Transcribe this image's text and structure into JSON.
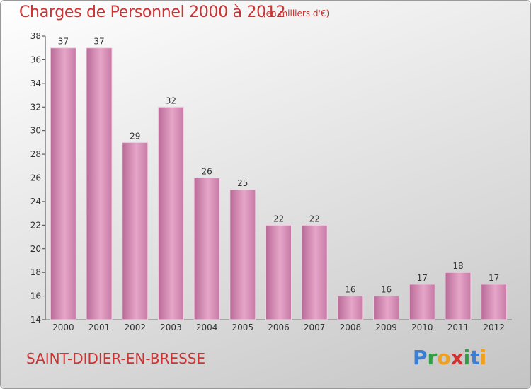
{
  "header": {
    "title": "Charges de Personnel 2000 à 2012",
    "unit": "(en milliers d'€)"
  },
  "footer": {
    "town": "SAINT-DIDIER-EN-BRESSE",
    "logo": {
      "letters": [
        "P",
        "r",
        "o",
        "x",
        "i",
        "t",
        "i"
      ],
      "colors": [
        "#3b7fd4",
        "#2f9e44",
        "#f0a020",
        "#d03030",
        "#2f9e44",
        "#3b7fd4",
        "#f0a020"
      ]
    }
  },
  "chart_data": {
    "type": "bar",
    "title": "Charges de Personnel 2000 à 2012",
    "subtitle": "(en milliers d'€)",
    "categories": [
      "2000",
      "2001",
      "2002",
      "2003",
      "2004",
      "2005",
      "2006",
      "2007",
      "2008",
      "2009",
      "2010",
      "2011",
      "2012"
    ],
    "values": [
      37,
      37,
      29,
      32,
      26,
      25,
      22,
      22,
      16,
      16,
      17,
      18,
      17
    ],
    "ylim": [
      14,
      38
    ],
    "yticks": [
      14,
      16,
      18,
      20,
      22,
      24,
      26,
      28,
      30,
      32,
      34,
      36,
      38
    ],
    "grid": false,
    "bar_color": "#d58ab4",
    "text_color": "#cc3333"
  }
}
